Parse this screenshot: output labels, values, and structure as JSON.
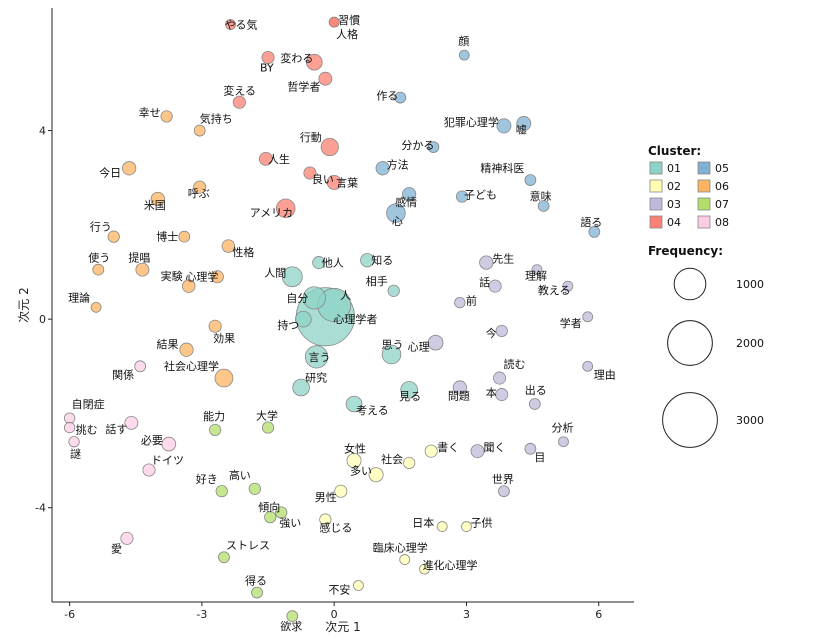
{
  "chart_data": {
    "type": "scatter",
    "xlabel": "次元 1",
    "ylabel": "次元 2",
    "xlim": [
      -6.4,
      6.8
    ],
    "ylim": [
      -6.0,
      6.6
    ],
    "xticks": [
      -6,
      -3,
      0,
      3,
      6
    ],
    "yticks": [
      -4,
      0,
      4
    ],
    "grid": false,
    "cluster_legend": {
      "title": "Cluster:",
      "items": [
        {
          "id": "01",
          "color": "#8dd3c7"
        },
        {
          "id": "02",
          "color": "#ffffb3"
        },
        {
          "id": "03",
          "color": "#bebada"
        },
        {
          "id": "04",
          "color": "#fb8072"
        },
        {
          "id": "05",
          "color": "#80b1d3"
        },
        {
          "id": "06",
          "color": "#fdb462"
        },
        {
          "id": "07",
          "color": "#b3de69"
        },
        {
          "id": "08",
          "color": "#fccde5"
        }
      ]
    },
    "size_legend": {
      "title": "Frequency:",
      "items": [
        {
          "value": 1000,
          "label": "1000"
        },
        {
          "value": 2000,
          "label": "2000"
        },
        {
          "value": 3000,
          "label": "3000"
        }
      ]
    },
    "points": [
      {
        "word": "心理学者",
        "x": -0.2,
        "y": 0.05,
        "cluster": "01",
        "freq": 3400,
        "dx": 8,
        "dy": 6
      },
      {
        "word": "人",
        "x": 0.0,
        "y": 0.3,
        "cluster": "01",
        "freq": 1100,
        "dx": 6,
        "dy": -6
      },
      {
        "word": "自分",
        "x": -0.45,
        "y": 0.45,
        "cluster": "01",
        "freq": 500,
        "dx": -28,
        "dy": 4
      },
      {
        "word": "人間",
        "x": -0.95,
        "y": 0.9,
        "cluster": "01",
        "freq": 400,
        "dx": -28,
        "dy": 0
      },
      {
        "word": "持つ",
        "x": -0.7,
        "y": 0.0,
        "cluster": "01",
        "freq": 250,
        "dx": -26,
        "dy": 10
      },
      {
        "word": "他人",
        "x": -0.35,
        "y": 1.2,
        "cluster": "01",
        "freq": 150,
        "dx": 3,
        "dy": 4
      },
      {
        "word": "知る",
        "x": 0.75,
        "y": 1.25,
        "cluster": "01",
        "freq": 180,
        "dx": 4,
        "dy": 4
      },
      {
        "word": "相手",
        "x": 1.35,
        "y": 0.6,
        "cluster": "01",
        "freq": 130,
        "dx": -28,
        "dy": -6
      },
      {
        "word": "言う",
        "x": -0.4,
        "y": -0.8,
        "cluster": "01",
        "freq": 500,
        "dx": -8,
        "dy": 4
      },
      {
        "word": "研究",
        "x": -0.75,
        "y": -1.45,
        "cluster": "01",
        "freq": 280,
        "dx": 4,
        "dy": -6
      },
      {
        "word": "思う",
        "x": 1.3,
        "y": -0.75,
        "cluster": "01",
        "freq": 350,
        "dx": -10,
        "dy": -6
      },
      {
        "word": "見る",
        "x": 1.7,
        "y": -1.5,
        "cluster": "01",
        "freq": 280,
        "dx": -10,
        "dy": 10
      },
      {
        "word": "考える",
        "x": 0.45,
        "y": -1.8,
        "cluster": "01",
        "freq": 250,
        "dx": 2,
        "dy": 10
      },
      {
        "word": "女性",
        "x": 0.45,
        "y": -3.0,
        "cluster": "02",
        "freq": 200,
        "dx": -10,
        "dy": -8
      },
      {
        "word": "多い",
        "x": 0.95,
        "y": -3.3,
        "cluster": "02",
        "freq": 200,
        "dx": -26,
        "dy": 0
      },
      {
        "word": "社会",
        "x": 1.7,
        "y": -3.05,
        "cluster": "02",
        "freq": 130,
        "dx": -28,
        "dy": 0
      },
      {
        "word": "書く",
        "x": 2.2,
        "y": -2.8,
        "cluster": "02",
        "freq": 150,
        "dx": 6,
        "dy": 0
      },
      {
        "word": "男性",
        "x": 0.15,
        "y": -3.65,
        "cluster": "02",
        "freq": 150,
        "dx": -26,
        "dy": 10
      },
      {
        "word": "感じる",
        "x": -0.2,
        "y": -4.25,
        "cluster": "02",
        "freq": 130,
        "dx": -6,
        "dy": 12
      },
      {
        "word": "日本",
        "x": 2.45,
        "y": -4.4,
        "cluster": "02",
        "freq": 100,
        "dx": -30,
        "dy": 0
      },
      {
        "word": "子供",
        "x": 3.0,
        "y": -4.4,
        "cluster": "02",
        "freq": 100,
        "dx": 4,
        "dy": 0
      },
      {
        "word": "臨床心理学",
        "x": 1.6,
        "y": -5.1,
        "cluster": "02",
        "freq": 100,
        "dx": -32,
        "dy": -8
      },
      {
        "word": "進化心理学",
        "x": 2.05,
        "y": -5.3,
        "cluster": "02",
        "freq": 100,
        "dx": -2,
        "dy": 0
      },
      {
        "word": "不安",
        "x": 0.55,
        "y": -5.65,
        "cluster": "02",
        "freq": 100,
        "dx": -30,
        "dy": 8
      },
      {
        "word": "心理",
        "x": 2.3,
        "y": -0.5,
        "cluster": "03",
        "freq": 220,
        "dx": -28,
        "dy": 8
      },
      {
        "word": "先生",
        "x": 3.45,
        "y": 1.2,
        "cluster": "03",
        "freq": 180,
        "dx": 6,
        "dy": 0
      },
      {
        "word": "話",
        "x": 3.65,
        "y": 0.7,
        "cluster": "03",
        "freq": 150,
        "dx": -16,
        "dy": 0
      },
      {
        "word": "理解",
        "x": 4.6,
        "y": 1.05,
        "cluster": "03",
        "freq": 100,
        "dx": -12,
        "dy": 10
      },
      {
        "word": "教える",
        "x": 5.3,
        "y": 0.7,
        "cluster": "03",
        "freq": 100,
        "dx": -30,
        "dy": 8
      },
      {
        "word": "前",
        "x": 2.85,
        "y": 0.35,
        "cluster": "03",
        "freq": 110,
        "dx": 6,
        "dy": 2
      },
      {
        "word": "学者",
        "x": 5.75,
        "y": 0.05,
        "cluster": "03",
        "freq": 100,
        "dx": -28,
        "dy": 10
      },
      {
        "word": "今",
        "x": 3.8,
        "y": -0.25,
        "cluster": "03",
        "freq": 130,
        "dx": -16,
        "dy": 6
      },
      {
        "word": "読む",
        "x": 3.75,
        "y": -1.25,
        "cluster": "03",
        "freq": 150,
        "dx": 4,
        "dy": -10
      },
      {
        "word": "問題",
        "x": 2.85,
        "y": -1.45,
        "cluster": "03",
        "freq": 180,
        "dx": -12,
        "dy": 12
      },
      {
        "word": "本",
        "x": 3.8,
        "y": -1.6,
        "cluster": "03",
        "freq": 150,
        "dx": -16,
        "dy": 2
      },
      {
        "word": "出る",
        "x": 4.55,
        "y": -1.8,
        "cluster": "03",
        "freq": 120,
        "dx": -10,
        "dy": -10
      },
      {
        "word": "理由",
        "x": 5.75,
        "y": -1.0,
        "cluster": "03",
        "freq": 100,
        "dx": 6,
        "dy": 12
      },
      {
        "word": "分析",
        "x": 5.2,
        "y": -2.6,
        "cluster": "03",
        "freq": 100,
        "dx": -12,
        "dy": -10
      },
      {
        "word": "聞く",
        "x": 3.25,
        "y": -2.8,
        "cluster": "03",
        "freq": 170,
        "dx": 6,
        "dy": 0
      },
      {
        "word": "目",
        "x": 4.45,
        "y": -2.75,
        "cluster": "03",
        "freq": 120,
        "dx": 4,
        "dy": 12
      },
      {
        "word": "世界",
        "x": 3.85,
        "y": -3.65,
        "cluster": "03",
        "freq": 120,
        "dx": -12,
        "dy": -8
      },
      {
        "word": "やる気",
        "x": -2.35,
        "y": 6.25,
        "cluster": "04",
        "freq": 100,
        "dx": -6,
        "dy": 4
      },
      {
        "word": "習慣",
        "x": 0.0,
        "y": 6.3,
        "cluster": "04",
        "freq": 100,
        "dx": 4,
        "dy": 2
      },
      {
        "word": "人格",
        "x": 0.0,
        "y": 6.3,
        "cluster": "04",
        "freq": 100,
        "dx": 2,
        "dy": 16
      },
      {
        "word": "BY",
        "x": -1.5,
        "y": 5.55,
        "cluster": "04",
        "freq": 150,
        "dx": -8,
        "dy": 14
      },
      {
        "word": "変わる",
        "x": -0.45,
        "y": 5.45,
        "cluster": "04",
        "freq": 250,
        "dx": -34,
        "dy": 0
      },
      {
        "word": "哲学者",
        "x": -0.2,
        "y": 5.1,
        "cluster": "04",
        "freq": 170,
        "dx": -38,
        "dy": 12
      },
      {
        "word": "変える",
        "x": -2.15,
        "y": 4.6,
        "cluster": "04",
        "freq": 150,
        "dx": -16,
        "dy": -8
      },
      {
        "word": "行動",
        "x": -0.1,
        "y": 3.65,
        "cluster": "04",
        "freq": 300,
        "dx": -30,
        "dy": -6
      },
      {
        "word": "人生",
        "x": -1.55,
        "y": 3.4,
        "cluster": "04",
        "freq": 170,
        "dx": 2,
        "dy": 4
      },
      {
        "word": "良い",
        "x": -0.55,
        "y": 3.1,
        "cluster": "04",
        "freq": 150,
        "dx": 2,
        "dy": 10
      },
      {
        "word": "言葉",
        "x": 0.0,
        "y": 2.9,
        "cluster": "04",
        "freq": 200,
        "dx": 2,
        "dy": 4
      },
      {
        "word": "アメリカ",
        "x": -1.1,
        "y": 2.35,
        "cluster": "04",
        "freq": 350,
        "dx": -36,
        "dy": 8
      },
      {
        "word": "顔",
        "x": 2.95,
        "y": 5.6,
        "cluster": "05",
        "freq": 100,
        "dx": -6,
        "dy": -10
      },
      {
        "word": "作る",
        "x": 1.5,
        "y": 4.7,
        "cluster": "05",
        "freq": 120,
        "dx": -24,
        "dy": 2
      },
      {
        "word": "犯罪心理学",
        "x": 3.85,
        "y": 4.1,
        "cluster": "05",
        "freq": 200,
        "dx": -60,
        "dy": 0
      },
      {
        "word": "嘘",
        "x": 4.3,
        "y": 4.15,
        "cluster": "05",
        "freq": 200,
        "dx": -8,
        "dy": 10
      },
      {
        "word": "分かる",
        "x": 2.25,
        "y": 3.65,
        "cluster": "05",
        "freq": 120,
        "dx": -32,
        "dy": 2
      },
      {
        "word": "方法",
        "x": 1.1,
        "y": 3.2,
        "cluster": "05",
        "freq": 180,
        "dx": 4,
        "dy": 0
      },
      {
        "word": "精神科医",
        "x": 4.45,
        "y": 2.95,
        "cluster": "05",
        "freq": 120,
        "dx": -50,
        "dy": -8
      },
      {
        "word": "感情",
        "x": 1.7,
        "y": 2.65,
        "cluster": "05",
        "freq": 180,
        "dx": -14,
        "dy": 12
      },
      {
        "word": "子ども",
        "x": 2.9,
        "y": 2.6,
        "cluster": "05",
        "freq": 130,
        "dx": 2,
        "dy": 2
      },
      {
        "word": "意味",
        "x": 4.75,
        "y": 2.4,
        "cluster": "05",
        "freq": 120,
        "dx": -14,
        "dy": -6
      },
      {
        "word": "心",
        "x": 1.4,
        "y": 2.25,
        "cluster": "05",
        "freq": 350,
        "dx": -4,
        "dy": 12
      },
      {
        "word": "語る",
        "x": 5.9,
        "y": 1.85,
        "cluster": "05",
        "freq": 120,
        "dx": -14,
        "dy": -6
      },
      {
        "word": "幸せ",
        "x": -3.8,
        "y": 4.3,
        "cluster": "06",
        "freq": 130,
        "dx": -28,
        "dy": 0
      },
      {
        "word": "気持ち",
        "x": -3.05,
        "y": 4.0,
        "cluster": "06",
        "freq": 120,
        "dx": 0,
        "dy": -8
      },
      {
        "word": "今日",
        "x": -4.65,
        "y": 3.2,
        "cluster": "06",
        "freq": 180,
        "dx": -30,
        "dy": 8
      },
      {
        "word": "呼ぶ",
        "x": -3.05,
        "y": 2.8,
        "cluster": "06",
        "freq": 150,
        "dx": -12,
        "dy": 10
      },
      {
        "word": "米国",
        "x": -4.0,
        "y": 2.55,
        "cluster": "06",
        "freq": 180,
        "dx": -14,
        "dy": 10
      },
      {
        "word": "行う",
        "x": -5.0,
        "y": 1.75,
        "cluster": "06",
        "freq": 130,
        "dx": -24,
        "dy": -6
      },
      {
        "word": "博士",
        "x": -3.4,
        "y": 1.75,
        "cluster": "06",
        "freq": 120,
        "dx": -28,
        "dy": 4
      },
      {
        "word": "性格",
        "x": -2.4,
        "y": 1.55,
        "cluster": "06",
        "freq": 160,
        "dx": 4,
        "dy": 10
      },
      {
        "word": "使う",
        "x": -5.35,
        "y": 1.05,
        "cluster": "06",
        "freq": 120,
        "dx": -10,
        "dy": -8
      },
      {
        "word": "提唱",
        "x": -4.35,
        "y": 1.05,
        "cluster": "06",
        "freq": 170,
        "dx": -14,
        "dy": -8
      },
      {
        "word": "心理学",
        "x": -2.65,
        "y": 0.9,
        "cluster": "06",
        "freq": 150,
        "dx": -32,
        "dy": 4
      },
      {
        "word": "実験",
        "x": -3.3,
        "y": 0.7,
        "cluster": "06",
        "freq": 160,
        "dx": -28,
        "dy": -6
      },
      {
        "word": "理論",
        "x": -5.4,
        "y": 0.25,
        "cluster": "06",
        "freq": 100,
        "dx": -28,
        "dy": -6
      },
      {
        "word": "結果",
        "x": -3.35,
        "y": -0.65,
        "cluster": "06",
        "freq": 180,
        "dx": -30,
        "dy": -2
      },
      {
        "word": "効果",
        "x": -2.7,
        "y": -0.15,
        "cluster": "06",
        "freq": 150,
        "dx": -2,
        "dy": 16
      },
      {
        "word": "社会心理学",
        "x": -2.5,
        "y": -1.25,
        "cluster": "06",
        "freq": 320,
        "dx": -60,
        "dy": -8
      },
      {
        "word": "大学",
        "x": -1.5,
        "y": -2.3,
        "cluster": "07",
        "freq": 130,
        "dx": -12,
        "dy": -8
      },
      {
        "word": "能力",
        "x": -2.7,
        "y": -2.35,
        "cluster": "07",
        "freq": 130,
        "dx": -12,
        "dy": -10
      },
      {
        "word": "好き",
        "x": -2.55,
        "y": -3.65,
        "cluster": "07",
        "freq": 130,
        "dx": -26,
        "dy": -8
      },
      {
        "word": "高い",
        "x": -1.8,
        "y": -3.6,
        "cluster": "07",
        "freq": 130,
        "dx": -26,
        "dy": -10
      },
      {
        "word": "傾向",
        "x": -1.45,
        "y": -4.2,
        "cluster": "07",
        "freq": 130,
        "dx": -12,
        "dy": -6
      },
      {
        "word": "強い",
        "x": -1.2,
        "y": -4.1,
        "cluster": "07",
        "freq": 130,
        "dx": -2,
        "dy": 14
      },
      {
        "word": "ストレス",
        "x": -2.5,
        "y": -5.05,
        "cluster": "07",
        "freq": 120,
        "dx": 2,
        "dy": -8
      },
      {
        "word": "得る",
        "x": -1.75,
        "y": -5.8,
        "cluster": "07",
        "freq": 120,
        "dx": -12,
        "dy": -8
      },
      {
        "word": "欲求",
        "x": -0.95,
        "y": -6.3,
        "cluster": "07",
        "freq": 120,
        "dx": -12,
        "dy": 14
      },
      {
        "word": "関係",
        "x": -4.4,
        "y": -1.0,
        "cluster": "08",
        "freq": 120,
        "dx": -28,
        "dy": 12
      },
      {
        "word": "自閉症",
        "x": -6.0,
        "y": -2.1,
        "cluster": "08",
        "freq": 110,
        "dx": 2,
        "dy": -10
      },
      {
        "word": "挑む",
        "x": -6.0,
        "y": -2.3,
        "cluster": "08",
        "freq": 110,
        "dx": 6,
        "dy": 6
      },
      {
        "word": "話す",
        "x": -4.6,
        "y": -2.2,
        "cluster": "08",
        "freq": 170,
        "dx": -26,
        "dy": 10
      },
      {
        "word": "謎",
        "x": -5.9,
        "y": -2.6,
        "cluster": "08",
        "freq": 110,
        "dx": -4,
        "dy": 16
      },
      {
        "word": "必要",
        "x": -3.75,
        "y": -2.65,
        "cluster": "08",
        "freq": 190,
        "dx": -28,
        "dy": 0
      },
      {
        "word": "ドイツ",
        "x": -4.2,
        "y": -3.2,
        "cluster": "08",
        "freq": 150,
        "dx": 2,
        "dy": -6
      },
      {
        "word": "愛",
        "x": -4.7,
        "y": -4.65,
        "cluster": "08",
        "freq": 150,
        "dx": -16,
        "dy": 14
      }
    ]
  }
}
